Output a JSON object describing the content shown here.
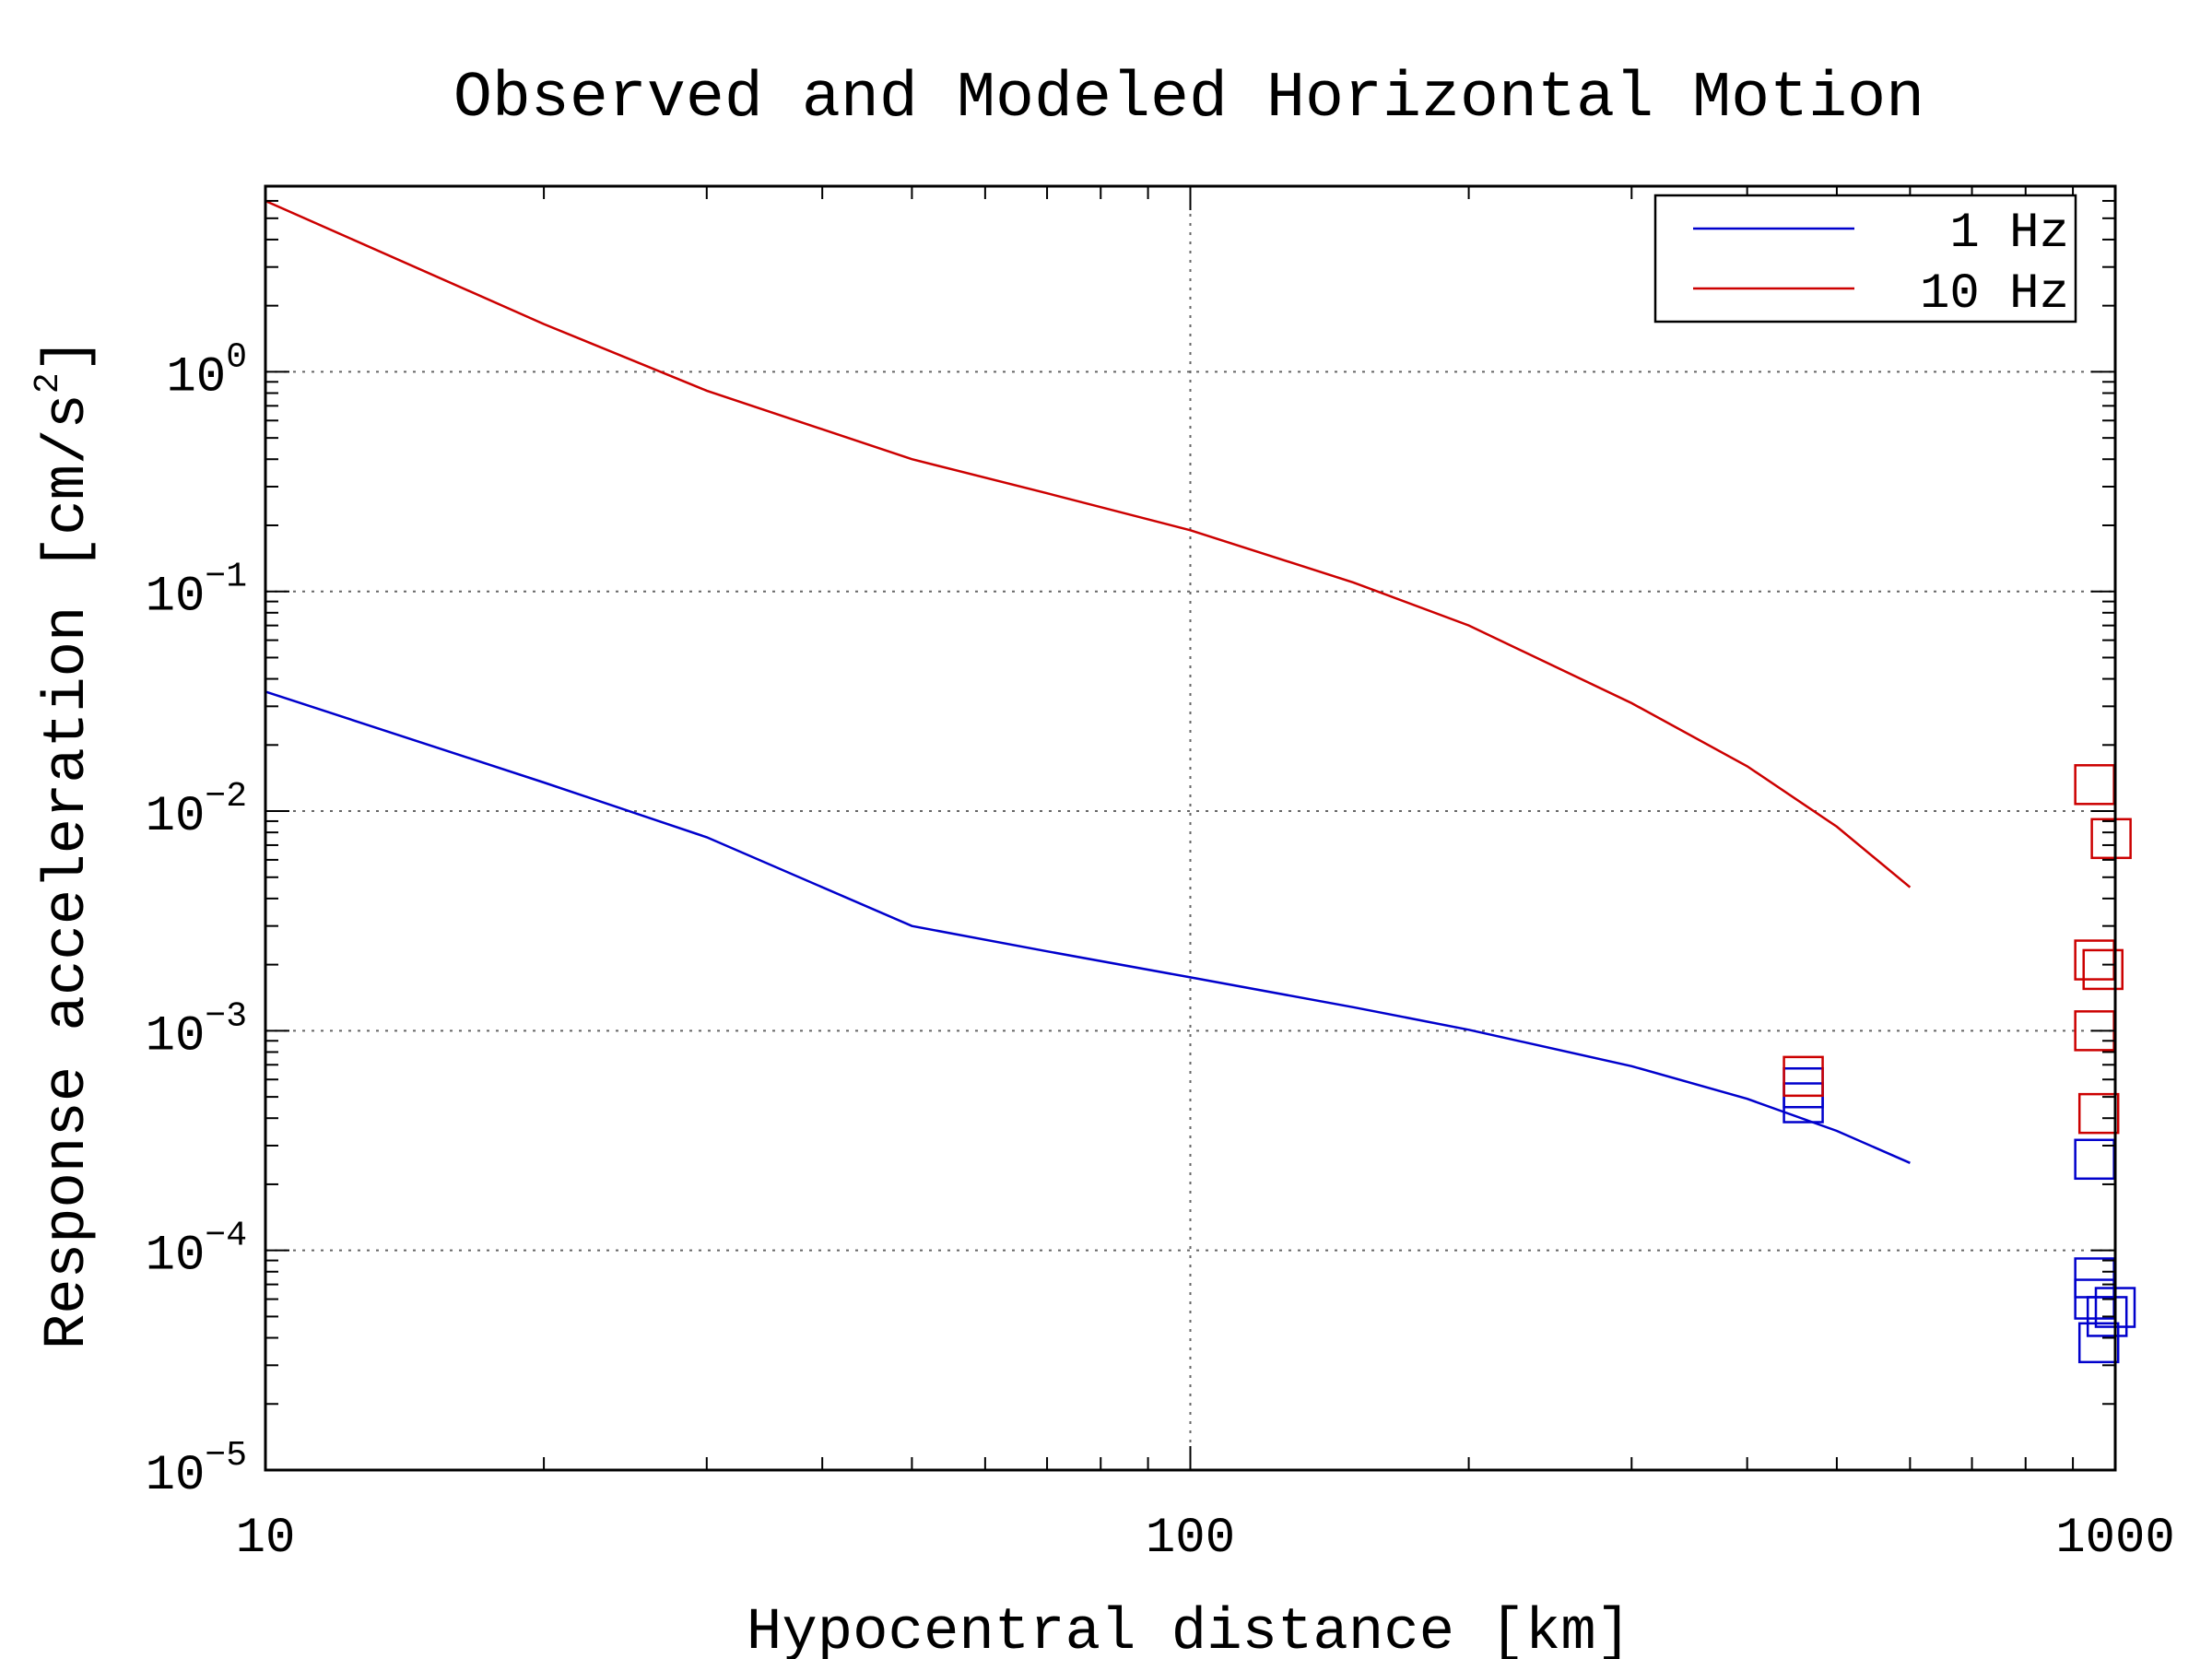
{
  "chart_data": {
    "type": "line",
    "title": "Observed and Modeled Horizontal Motion",
    "xlabel": "Hypocentral distance [km]",
    "ylabel": "Response acceleration [cm/s",
    "ylabel_sup": "2",
    "ylabel_suffix": "]",
    "xscale": "log",
    "yscale": "log",
    "xlim": [
      10,
      1000
    ],
    "ylim": [
      1e-05,
      7
    ],
    "grid": true,
    "legend_position": "top-right",
    "x_ticks": [
      {
        "value": 10,
        "label": "10"
      },
      {
        "value": 100,
        "label": "100"
      },
      {
        "value": 1000,
        "label": "1000"
      }
    ],
    "y_ticks": [
      {
        "value": 1e-05,
        "base": "10",
        "exp": "−5"
      },
      {
        "value": 0.0001,
        "base": "10",
        "exp": "−4"
      },
      {
        "value": 0.001,
        "base": "10",
        "exp": "−3"
      },
      {
        "value": 0.01,
        "base": "10",
        "exp": "−2"
      },
      {
        "value": 0.1,
        "base": "10",
        "exp": "−1"
      },
      {
        "value": 1,
        "base": "10",
        "exp": "0"
      }
    ],
    "series": [
      {
        "name": "1 Hz",
        "color": "#0000cc",
        "x": [
          10,
          20,
          30,
          50,
          70,
          100,
          150,
          200,
          300,
          400,
          500,
          600
        ],
        "y": [
          0.035,
          0.0135,
          0.0076,
          0.003,
          0.0023,
          0.00175,
          0.00128,
          0.00101,
          0.00069,
          0.00049,
          0.00035,
          0.00025
        ],
        "observed": {
          "x": [
            460,
            460,
            950,
            950,
            950,
            960,
            980,
            1000
          ],
          "y": [
            0.00055,
            0.00047,
            0.00026,
            7.5e-05,
            6e-05,
            3.8e-05,
            5e-05,
            5.5e-05
          ]
        }
      },
      {
        "name": "10 Hz",
        "color": "#cc0000",
        "x": [
          10,
          20,
          30,
          50,
          70,
          100,
          150,
          200,
          300,
          400,
          500,
          600
        ],
        "y": [
          6.0,
          1.65,
          0.82,
          0.4,
          0.28,
          0.19,
          0.11,
          0.07,
          0.031,
          0.016,
          0.0085,
          0.0045
        ],
        "observed": {
          "x": [
            460,
            950,
            990,
            950,
            970,
            950,
            960
          ],
          "y": [
            0.00062,
            0.0132,
            0.0075,
            0.0021,
            0.0019,
            0.001,
            0.00042
          ]
        }
      }
    ]
  }
}
